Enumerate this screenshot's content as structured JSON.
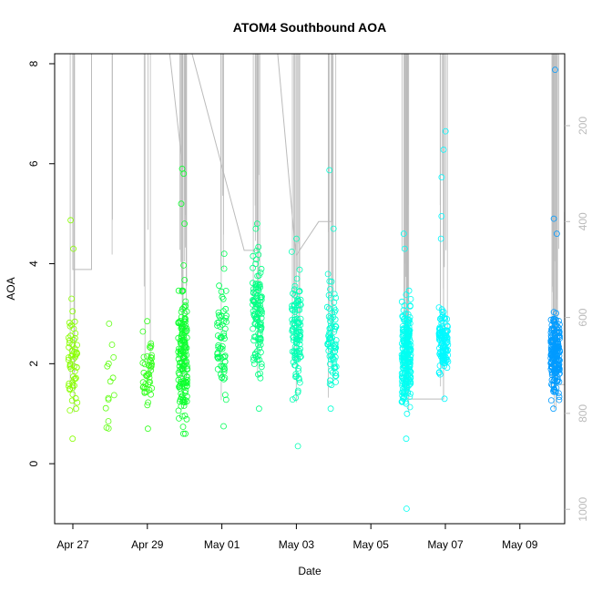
{
  "chart_data": {
    "type": "scatter",
    "title": "ATOM4 Southbound AOA",
    "xlabel": "Date",
    "ylabel": "AOA",
    "xticks": [
      "Apr 27",
      "Apr 29",
      "May 01",
      "May 03",
      "May 05",
      "May 07",
      "May 09"
    ],
    "yticks": [
      "0",
      "2",
      "4",
      "6",
      "8"
    ],
    "right_ticks": [
      "200",
      "400",
      "600",
      "800",
      "1000"
    ],
    "ylim": [
      -1.2,
      8.2
    ],
    "right_ylim": [
      50,
      1030
    ],
    "grid": false,
    "legend": "none",
    "point_color_scale": [
      "#88ff00",
      "#00ff33",
      "#00ffcc",
      "#00ffff",
      "#0099ff"
    ],
    "secondary_line_color": "#bbbbbb",
    "clusters": [
      {
        "date": "Apr 27",
        "day_offset": 0.0,
        "mean": 2.0,
        "spread": 0.7,
        "count": 55,
        "outliers": [
          4.87,
          4.3,
          3.3,
          0.5
        ]
      },
      {
        "date": "Apr 28",
        "day_offset": 1.0,
        "mean": 1.5,
        "spread": 0.7,
        "count": 10,
        "outliers": [
          2.8,
          2.38,
          2.0,
          0.85
        ]
      },
      {
        "date": "Apr 29",
        "day_offset": 2.0,
        "mean": 1.8,
        "spread": 0.6,
        "count": 45,
        "outliers": [
          2.85,
          0.7
        ]
      },
      {
        "date": "Apr 30",
        "day_offset": 2.95,
        "mean": 2.2,
        "spread": 1.0,
        "count": 150,
        "outliers": [
          5.9,
          5.8,
          5.2,
          4.8,
          0.95
        ]
      },
      {
        "date": "May 01",
        "day_offset": 4.0,
        "mean": 2.5,
        "spread": 0.9,
        "count": 60,
        "outliers": [
          4.2,
          3.9,
          0.75
        ]
      },
      {
        "date": "May 02",
        "day_offset": 4.95,
        "mean": 3.0,
        "spread": 1.0,
        "count": 110,
        "outliers": [
          4.8,
          4.7,
          1.1
        ]
      },
      {
        "date": "May 03",
        "day_offset": 6.0,
        "mean": 2.5,
        "spread": 1.0,
        "count": 110,
        "outliers": [
          4.5,
          0.35
        ]
      },
      {
        "date": "May 04",
        "day_offset": 6.95,
        "mean": 2.6,
        "spread": 0.9,
        "count": 80,
        "outliers": [
          5.87,
          4.7,
          1.1
        ]
      },
      {
        "date": "May 06",
        "day_offset": 8.95,
        "mean": 2.2,
        "spread": 0.8,
        "count": 220,
        "outliers": [
          4.6,
          4.3,
          0.5,
          -0.9
        ]
      },
      {
        "date": "May 07",
        "day_offset": 9.95,
        "mean": 2.4,
        "spread": 0.5,
        "count": 120,
        "outliers": [
          6.65,
          6.28,
          5.73,
          4.95,
          4.5,
          1.3
        ]
      },
      {
        "date": "May 09",
        "day_offset": 12.95,
        "mean": 2.2,
        "spread": 0.6,
        "count": 200,
        "outliers": [
          7.88,
          4.9,
          4.6,
          1.1
        ]
      }
    ],
    "secondary_series": [
      {
        "day": 0.0,
        "depth": 50
      },
      {
        "day": 0.0,
        "depth": 500
      },
      {
        "day": 0.5,
        "depth": 500
      },
      {
        "day": 0.5,
        "depth": 50
      },
      {
        "day": 1.0,
        "depth": 50
      },
      {
        "day": 2.0,
        "depth": 50
      },
      {
        "day": 2.6,
        "depth": 50
      },
      {
        "day": 2.95,
        "depth": 290
      },
      {
        "day": 2.95,
        "depth": 50
      },
      {
        "day": 3.2,
        "depth": 50
      },
      {
        "day": 4.6,
        "depth": 460
      },
      {
        "day": 4.95,
        "depth": 460
      },
      {
        "day": 4.95,
        "depth": 50
      },
      {
        "day": 5.5,
        "depth": 50
      },
      {
        "day": 5.95,
        "depth": 440
      },
      {
        "day": 6.0,
        "depth": 470
      },
      {
        "day": 6.6,
        "depth": 400
      },
      {
        "day": 6.95,
        "depth": 400
      },
      {
        "day": 6.95,
        "depth": 50
      },
      {
        "day": 7.2,
        "depth": 50
      },
      {
        "day": 8.95,
        "depth": 50
      },
      {
        "day": 8.95,
        "depth": 770
      },
      {
        "day": 9.95,
        "depth": 770
      },
      {
        "day": 9.95,
        "depth": 50
      },
      {
        "day": 12.95,
        "depth": 50
      },
      {
        "day": 12.95,
        "depth": 740
      },
      {
        "day": 13.2,
        "depth": 740
      },
      {
        "day": 13.2,
        "depth": 380
      }
    ]
  }
}
